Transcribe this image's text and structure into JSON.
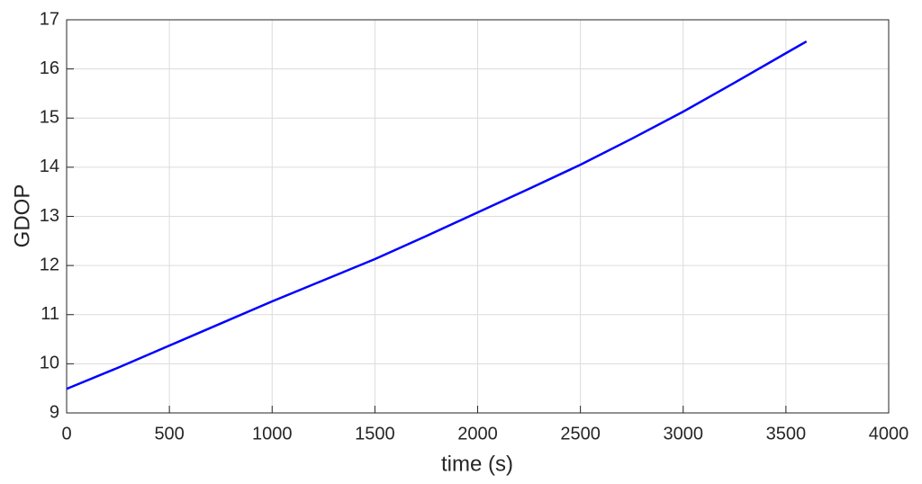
{
  "chart_data": {
    "type": "line",
    "x_label": "time (s)",
    "y_label": "GDOP",
    "x": [
      0,
      250,
      500,
      750,
      1000,
      1250,
      1500,
      1750,
      2000,
      2250,
      2500,
      2750,
      3000,
      3250,
      3500,
      3600
    ],
    "series": [
      {
        "color": "#0000ff",
        "values": [
          9.49,
          9.92,
          10.37,
          10.82,
          11.27,
          11.7,
          12.13,
          12.6,
          13.08,
          13.56,
          14.05,
          14.58,
          15.13,
          15.72,
          16.32,
          16.56
        ]
      }
    ],
    "xlim": [
      0,
      4000
    ],
    "xticks": [
      0,
      500,
      1000,
      1500,
      2000,
      2500,
      3000,
      3500,
      4000
    ],
    "ylim": [
      9,
      17
    ],
    "yticks": [
      9,
      10,
      11,
      12,
      13,
      14,
      15,
      16,
      17
    ],
    "grid": true
  }
}
